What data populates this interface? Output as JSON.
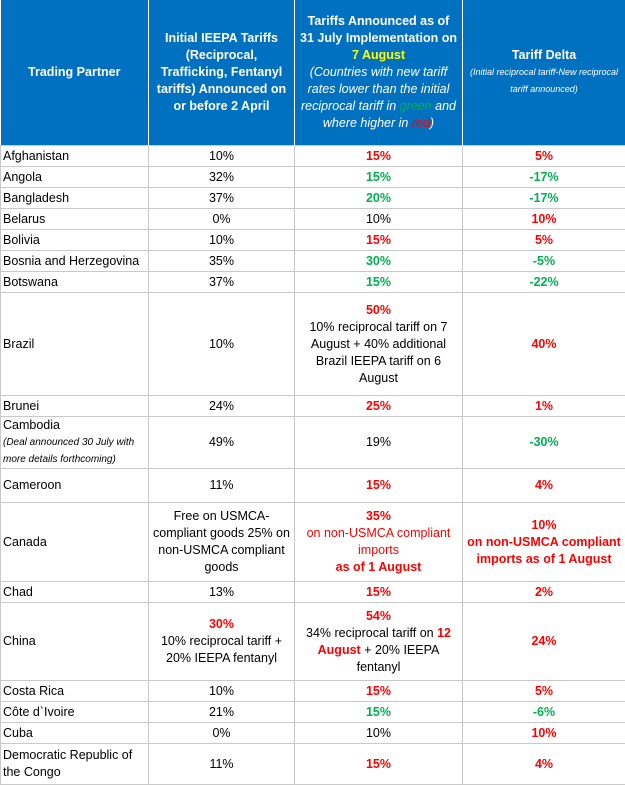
{
  "headers": {
    "col1": "Trading Partner",
    "col2": "Initial IEEPA Tariffs (Reciprocal, Trafficking, Fentanyl tariffs) Announced on or before 2 April",
    "col3_a": "Tariffs Announced as of 31 July Implementation on ",
    "col3_date": "7 August",
    "col3_note_a": "(Countries with new tariff rates lower than the initial reciprocal tariff in ",
    "col3_note_green": "green",
    "col3_note_b": " and where higher in ",
    "col3_note_red": "red",
    "col3_note_c": ")",
    "col4": "Tariff Delta",
    "col4_note": "(Initial reciprocal tariff-New reciprocal tariff announced)"
  },
  "rows": [
    {
      "country": "Afghanistan",
      "initial": "10%",
      "new": "15%",
      "new_color": "red",
      "delta": "5%",
      "delta_color": "red"
    },
    {
      "country": "Angola",
      "initial": "32%",
      "new": "15%",
      "new_color": "green",
      "delta": "-17%",
      "delta_color": "green"
    },
    {
      "country": "Bangladesh",
      "initial": "37%",
      "new": "20%",
      "new_color": "green",
      "delta": "-17%",
      "delta_color": "green"
    },
    {
      "country": "Belarus",
      "initial": "0%",
      "new": "10%",
      "new_color": "plain",
      "delta": "10%",
      "delta_color": "red"
    },
    {
      "country": "Bolivia",
      "initial": "10%",
      "new": "15%",
      "new_color": "red",
      "delta": "5%",
      "delta_color": "red"
    },
    {
      "country": "Bosnia and Herzegovina",
      "initial": "35%",
      "new": "30%",
      "new_color": "green",
      "delta": "-5%",
      "delta_color": "green"
    },
    {
      "country": "Botswana",
      "initial": "37%",
      "new": "15%",
      "new_color": "green",
      "delta": "-22%",
      "delta_color": "green"
    }
  ],
  "brazil": {
    "country": "Brazil",
    "initial": "10%",
    "new": "50%",
    "new_detail": "10% reciprocal tariff on 7 August + 40% additional Brazil IEEPA tariff on 6 August",
    "delta": "40%"
  },
  "brunei": {
    "country": "Brunei",
    "initial": "24%",
    "new": "25%",
    "delta": "1%"
  },
  "cambodia": {
    "country": "Cambodia",
    "note": "(Deal announced 30 July with more details forthcoming)",
    "initial": "49%",
    "new": "19%",
    "delta": "-30%"
  },
  "cameroon": {
    "country": "Cameroon",
    "initial": "11%",
    "new": "15%",
    "delta": "4%"
  },
  "canada": {
    "country": "Canada",
    "initial": "Free on USMCA-compliant goods 25% on non-USMCA compliant goods",
    "new": "35%",
    "new_line2": "on non-USMCA compliant imports",
    "new_line3": "as of 1 August",
    "delta": "10%",
    "delta_detail": "on non-USMCA compliant imports as of 1 August"
  },
  "chad": {
    "country": "Chad",
    "initial": "13%",
    "new": "15%",
    "delta": "2%"
  },
  "china": {
    "country": "China",
    "initial": "30%",
    "initial_detail": "10% reciprocal tariff + 20% IEEPA fentanyl",
    "new": "54%",
    "new_detail_a": "34% reciprocal tariff on ",
    "new_detail_date": "12 August",
    "new_detail_b": " + 20% IEEPA fentanyl",
    "delta": "24%"
  },
  "rows2": [
    {
      "country": "Costa Rica",
      "initial": "10%",
      "new": "15%",
      "new_color": "red",
      "delta": "5%",
      "delta_color": "red"
    },
    {
      "country": "Côte d`Ivoire",
      "initial": "21%",
      "new": "15%",
      "new_color": "green",
      "delta": "-6%",
      "delta_color": "green"
    },
    {
      "country": "Cuba",
      "initial": "0%",
      "new": "10%",
      "new_color": "plain",
      "delta": "10%",
      "delta_color": "red"
    }
  ],
  "drc": {
    "country": "Democratic Republic of the Congo",
    "initial": "11%",
    "new": "15%",
    "delta": "4%"
  },
  "colors": {
    "header_bg": "#0070c0",
    "higher": "#ff0000",
    "lower": "#00b050",
    "date_highlight": "#ffff00"
  }
}
